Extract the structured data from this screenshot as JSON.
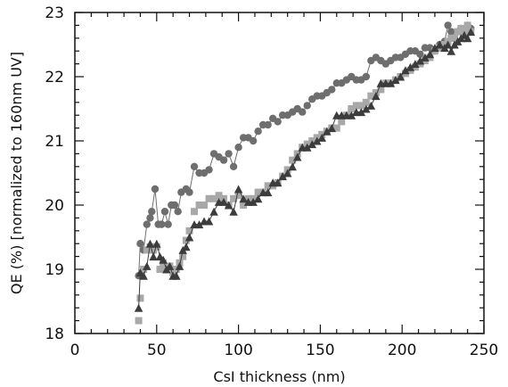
{
  "chart_data": {
    "type": "scatter",
    "xlabel": "CsI thickness (nm)",
    "ylabel": "QE (%) [normalized to 160nm UV]",
    "xlim": [
      0,
      250
    ],
    "ylim": [
      18,
      23
    ],
    "xticks": [
      0,
      50,
      100,
      150,
      200,
      250
    ],
    "yticks": [
      18,
      19,
      20,
      21,
      22,
      23
    ],
    "grid": false,
    "legend": false,
    "series": [
      {
        "marker": "circle",
        "color": "#6e6e6e",
        "line": true,
        "points": [
          [
            39,
            18.9
          ],
          [
            40,
            19.4
          ],
          [
            42,
            19.3
          ],
          [
            44,
            19.7
          ],
          [
            46,
            19.8
          ],
          [
            47,
            19.9
          ],
          [
            49,
            20.25
          ],
          [
            51,
            19.7
          ],
          [
            53,
            19.7
          ],
          [
            55,
            19.9
          ],
          [
            57,
            19.7
          ],
          [
            59,
            20.0
          ],
          [
            61,
            20.0
          ],
          [
            63,
            19.9
          ],
          [
            65,
            20.2
          ],
          [
            68,
            20.25
          ],
          [
            70,
            20.2
          ],
          [
            73,
            20.6
          ],
          [
            76,
            20.5
          ],
          [
            79,
            20.5
          ],
          [
            82,
            20.55
          ],
          [
            85,
            20.8
          ],
          [
            88,
            20.75
          ],
          [
            91,
            20.7
          ],
          [
            94,
            20.8
          ],
          [
            97,
            20.6
          ],
          [
            100,
            20.9
          ],
          [
            103,
            21.05
          ],
          [
            106,
            21.05
          ],
          [
            109,
            21.0
          ],
          [
            112,
            21.15
          ],
          [
            115,
            21.25
          ],
          [
            118,
            21.25
          ],
          [
            121,
            21.35
          ],
          [
            124,
            21.3
          ],
          [
            127,
            21.4
          ],
          [
            130,
            21.4
          ],
          [
            133,
            21.45
          ],
          [
            136,
            21.5
          ],
          [
            139,
            21.45
          ],
          [
            142,
            21.55
          ],
          [
            145,
            21.65
          ],
          [
            148,
            21.7
          ],
          [
            151,
            21.7
          ],
          [
            154,
            21.75
          ],
          [
            157,
            21.8
          ],
          [
            160,
            21.9
          ],
          [
            163,
            21.9
          ],
          [
            166,
            21.95
          ],
          [
            169,
            22.0
          ],
          [
            172,
            21.95
          ],
          [
            175,
            21.95
          ],
          [
            178,
            22.0
          ],
          [
            181,
            22.25
          ],
          [
            184,
            22.3
          ],
          [
            187,
            22.25
          ],
          [
            190,
            22.2
          ],
          [
            193,
            22.25
          ],
          [
            196,
            22.3
          ],
          [
            199,
            22.3
          ],
          [
            202,
            22.35
          ],
          [
            205,
            22.4
          ],
          [
            208,
            22.4
          ],
          [
            211,
            22.35
          ],
          [
            214,
            22.45
          ],
          [
            217,
            22.45
          ],
          [
            220,
            22.4
          ],
          [
            223,
            22.5
          ],
          [
            226,
            22.55
          ],
          [
            228,
            22.8
          ],
          [
            230,
            22.7
          ],
          [
            232,
            22.6
          ],
          [
            234,
            22.7
          ],
          [
            236,
            22.75
          ],
          [
            238,
            22.7
          ],
          [
            240,
            22.8
          ],
          [
            242,
            22.75
          ]
        ]
      },
      {
        "marker": "square",
        "color": "#a8a8a8",
        "line": false,
        "points": [
          [
            39,
            18.2
          ],
          [
            40,
            18.55
          ],
          [
            42,
            19.0
          ],
          [
            44,
            19.3
          ],
          [
            46,
            19.35
          ],
          [
            48,
            19.3
          ],
          [
            50,
            19.35
          ],
          [
            52,
            19.0
          ],
          [
            54,
            19.1
          ],
          [
            56,
            19.0
          ],
          [
            58,
            19.05
          ],
          [
            60,
            18.95
          ],
          [
            62,
            19.0
          ],
          [
            64,
            19.1
          ],
          [
            66,
            19.2
          ],
          [
            68,
            19.45
          ],
          [
            70,
            19.6
          ],
          [
            73,
            19.9
          ],
          [
            76,
            20.0
          ],
          [
            79,
            20.0
          ],
          [
            82,
            20.1
          ],
          [
            85,
            20.1
          ],
          [
            88,
            20.15
          ],
          [
            91,
            20.1
          ],
          [
            94,
            20.0
          ],
          [
            97,
            20.1
          ],
          [
            100,
            20.15
          ],
          [
            103,
            20.0
          ],
          [
            106,
            20.1
          ],
          [
            109,
            20.1
          ],
          [
            112,
            20.2
          ],
          [
            115,
            20.2
          ],
          [
            118,
            20.3
          ],
          [
            121,
            20.3
          ],
          [
            124,
            20.35
          ],
          [
            127,
            20.45
          ],
          [
            130,
            20.55
          ],
          [
            133,
            20.7
          ],
          [
            136,
            20.8
          ],
          [
            139,
            20.9
          ],
          [
            142,
            20.95
          ],
          [
            145,
            21.0
          ],
          [
            148,
            21.05
          ],
          [
            151,
            21.1
          ],
          [
            154,
            21.15
          ],
          [
            157,
            21.2
          ],
          [
            160,
            21.2
          ],
          [
            163,
            21.3
          ],
          [
            166,
            21.4
          ],
          [
            169,
            21.5
          ],
          [
            172,
            21.55
          ],
          [
            175,
            21.55
          ],
          [
            178,
            21.6
          ],
          [
            181,
            21.7
          ],
          [
            184,
            21.75
          ],
          [
            187,
            21.8
          ],
          [
            190,
            21.9
          ],
          [
            193,
            21.9
          ],
          [
            196,
            21.95
          ],
          [
            199,
            22.0
          ],
          [
            202,
            22.05
          ],
          [
            205,
            22.1
          ],
          [
            208,
            22.15
          ],
          [
            211,
            22.2
          ],
          [
            214,
            22.25
          ],
          [
            217,
            22.3
          ],
          [
            220,
            22.4
          ],
          [
            223,
            22.45
          ],
          [
            226,
            22.5
          ],
          [
            228,
            22.55
          ],
          [
            230,
            22.6
          ],
          [
            232,
            22.6
          ],
          [
            234,
            22.7
          ],
          [
            236,
            22.75
          ],
          [
            238,
            22.7
          ],
          [
            240,
            22.8
          ],
          [
            242,
            22.7
          ]
        ]
      },
      {
        "marker": "triangle",
        "color": "#3c3c3c",
        "line": true,
        "points": [
          [
            39,
            18.4
          ],
          [
            40,
            18.95
          ],
          [
            42,
            18.9
          ],
          [
            44,
            19.05
          ],
          [
            46,
            19.4
          ],
          [
            48,
            19.2
          ],
          [
            50,
            19.4
          ],
          [
            52,
            19.2
          ],
          [
            54,
            19.15
          ],
          [
            56,
            19.0
          ],
          [
            58,
            19.05
          ],
          [
            60,
            18.9
          ],
          [
            62,
            18.9
          ],
          [
            64,
            19.05
          ],
          [
            66,
            19.3
          ],
          [
            68,
            19.35
          ],
          [
            70,
            19.5
          ],
          [
            73,
            19.7
          ],
          [
            76,
            19.7
          ],
          [
            79,
            19.75
          ],
          [
            82,
            19.75
          ],
          [
            85,
            19.9
          ],
          [
            88,
            20.05
          ],
          [
            91,
            20.05
          ],
          [
            94,
            20.0
          ],
          [
            97,
            19.9
          ],
          [
            100,
            20.25
          ],
          [
            103,
            20.1
          ],
          [
            106,
            20.05
          ],
          [
            109,
            20.05
          ],
          [
            112,
            20.1
          ],
          [
            115,
            20.2
          ],
          [
            118,
            20.2
          ],
          [
            121,
            20.35
          ],
          [
            124,
            20.35
          ],
          [
            127,
            20.45
          ],
          [
            130,
            20.5
          ],
          [
            133,
            20.6
          ],
          [
            136,
            20.75
          ],
          [
            139,
            20.9
          ],
          [
            142,
            20.9
          ],
          [
            145,
            20.95
          ],
          [
            148,
            21.0
          ],
          [
            151,
            21.05
          ],
          [
            154,
            21.15
          ],
          [
            157,
            21.2
          ],
          [
            160,
            21.4
          ],
          [
            163,
            21.4
          ],
          [
            166,
            21.4
          ],
          [
            169,
            21.4
          ],
          [
            172,
            21.45
          ],
          [
            175,
            21.45
          ],
          [
            178,
            21.5
          ],
          [
            181,
            21.55
          ],
          [
            184,
            21.7
          ],
          [
            187,
            21.9
          ],
          [
            190,
            21.9
          ],
          [
            193,
            21.9
          ],
          [
            196,
            21.95
          ],
          [
            199,
            22.0
          ],
          [
            202,
            22.1
          ],
          [
            205,
            22.15
          ],
          [
            208,
            22.2
          ],
          [
            211,
            22.25
          ],
          [
            214,
            22.3
          ],
          [
            217,
            22.35
          ],
          [
            220,
            22.45
          ],
          [
            223,
            22.5
          ],
          [
            226,
            22.45
          ],
          [
            228,
            22.5
          ],
          [
            230,
            22.4
          ],
          [
            232,
            22.5
          ],
          [
            234,
            22.55
          ],
          [
            236,
            22.6
          ],
          [
            238,
            22.65
          ],
          [
            240,
            22.6
          ],
          [
            242,
            22.7
          ]
        ]
      }
    ]
  }
}
